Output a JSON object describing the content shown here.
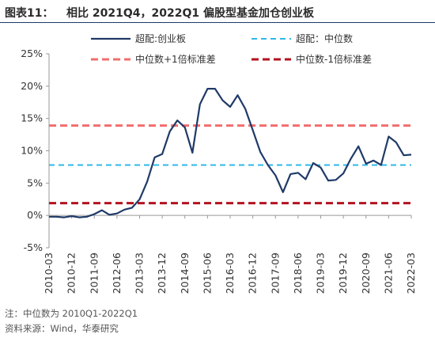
{
  "figure": {
    "label": "图表11：",
    "title": "相比 2021Q4，2022Q1 偏股型基金加仓创业板",
    "note": "注：中位数为 2010Q1-2022Q1",
    "source": "资料来源：Wind，华泰研究"
  },
  "colors": {
    "series_line": "#1f3a68",
    "median": "#2eb8e6",
    "plus1sd": "#f26d6d",
    "minus1sd": "#b3121f"
  },
  "chart_data": {
    "type": "line",
    "ylim": [
      -5,
      25
    ],
    "yticks": [
      -5,
      0,
      5,
      10,
      15,
      20,
      25
    ],
    "ytick_labels": [
      "-5%",
      "0%",
      "5%",
      "10%",
      "15%",
      "20%",
      "25%"
    ],
    "xtick_labels": [
      "2010-03",
      "2010-12",
      "2011-09",
      "2012-06",
      "2013-03",
      "2013-12",
      "2014-09",
      "2015-06",
      "2016-03",
      "2016-12",
      "2017-09",
      "2018-06",
      "2019-03",
      "2019-12",
      "2020-09",
      "2021-06",
      "2022-03"
    ],
    "x": [
      "2010-03",
      "2010-06",
      "2010-09",
      "2010-12",
      "2011-03",
      "2011-06",
      "2011-09",
      "2011-12",
      "2012-03",
      "2012-06",
      "2012-09",
      "2012-12",
      "2013-03",
      "2013-06",
      "2013-09",
      "2013-12",
      "2014-03",
      "2014-06",
      "2014-09",
      "2014-12",
      "2015-03",
      "2015-06",
      "2015-09",
      "2015-12",
      "2016-03",
      "2016-06",
      "2016-09",
      "2016-12",
      "2017-03",
      "2017-06",
      "2017-09",
      "2017-12",
      "2018-03",
      "2018-06",
      "2018-09",
      "2018-12",
      "2019-03",
      "2019-06",
      "2019-09",
      "2019-12",
      "2020-03",
      "2020-06",
      "2020-09",
      "2020-12",
      "2021-03",
      "2021-06",
      "2021-09",
      "2021-12",
      "2022-03"
    ],
    "series": [
      {
        "name": "超配:创业板",
        "style": "solid",
        "values": [
          -0.2,
          -0.2,
          -0.3,
          -0.1,
          -0.3,
          -0.2,
          0.2,
          0.8,
          0.1,
          0.3,
          0.9,
          1.2,
          2.5,
          5.2,
          9.0,
          9.5,
          13.0,
          14.7,
          13.6,
          9.7,
          17.2,
          19.6,
          19.6,
          17.8,
          16.8,
          18.6,
          16.5,
          13.2,
          9.8,
          7.8,
          6.2,
          3.6,
          6.4,
          6.6,
          5.6,
          8.1,
          7.4,
          5.4,
          5.5,
          6.5,
          8.8,
          10.7,
          8.0,
          8.5,
          7.8,
          12.2,
          11.3,
          9.3,
          9.4
        ]
      },
      {
        "name": "超配：中位数",
        "style": "dashed",
        "constant": 7.8
      },
      {
        "name": "中位数+1倍标准差",
        "style": "dashed",
        "constant": 13.9
      },
      {
        "name": "中位数-1倍标准差",
        "style": "dashed",
        "constant": 1.9
      }
    ],
    "legend": "top",
    "grid": false
  }
}
